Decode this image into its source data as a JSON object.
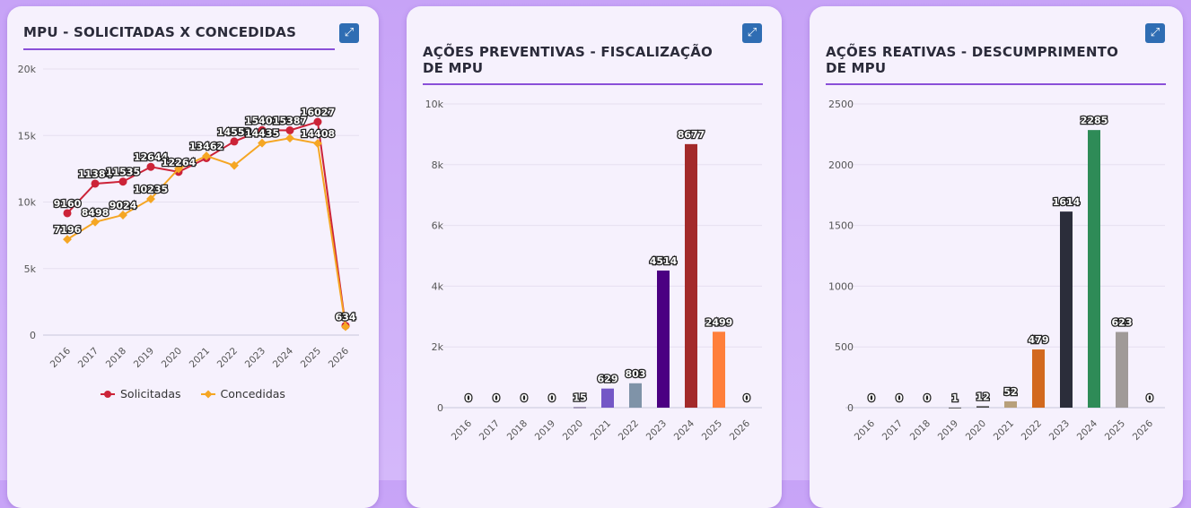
{
  "chart_data": [
    {
      "id": "c1",
      "type": "line",
      "title": "MPU - SOLICITADAS X CONCEDIDAS",
      "categories": [
        "2016",
        "2017",
        "2018",
        "2019",
        "2020",
        "2021",
        "2022",
        "2023",
        "2024",
        "2025",
        "2026"
      ],
      "ylim": [
        0,
        20000
      ],
      "yticks": [
        0,
        5000,
        10000,
        15000,
        20000
      ],
      "ytick_labels": [
        "0",
        "5k",
        "10k",
        "15k",
        "20k"
      ],
      "grid": true,
      "legend": "bottom",
      "series": [
        {
          "name": "Solicitadas",
          "color": "#cc2338",
          "marker": "circle",
          "values": [
            9160,
            11384,
            11535,
            12644,
            12264,
            13300,
            14552,
            15401,
            15387,
            16027,
            700
          ],
          "labels": [
            "9160",
            "11384",
            "11535",
            "12644",
            "12264",
            "",
            "14552",
            "15401",
            "15387",
            "16027",
            ""
          ]
        },
        {
          "name": "Concedidas",
          "color": "#f5a623",
          "marker": "diamond",
          "values": [
            7196,
            8498,
            9024,
            10235,
            12500,
            13462,
            12750,
            14435,
            14800,
            14408,
            634
          ],
          "labels": [
            "7196",
            "8498",
            "9024",
            "10235",
            "",
            "13462",
            "",
            "14435",
            "",
            "14408",
            "634"
          ]
        }
      ]
    },
    {
      "id": "c2",
      "type": "bar",
      "title": "AÇÕES PREVENTIVAS - FISCALIZAÇÃO DE MPU",
      "categories": [
        "2016",
        "2017",
        "2018",
        "2019",
        "2020",
        "2021",
        "2022",
        "2023",
        "2024",
        "2025",
        "2026"
      ],
      "values": [
        0,
        0,
        0,
        0,
        15,
        629,
        803,
        4514,
        8677,
        2499,
        0
      ],
      "colors": [
        "#7b5cc8",
        "#7b5cc8",
        "#7b5cc8",
        "#7b5cc8",
        "#5a4a7a",
        "#7457c6",
        "#7f93a8",
        "#4b0082",
        "#a32a2a",
        "#ff7f3a",
        "#888"
      ],
      "ylim": [
        0,
        10000
      ],
      "yticks": [
        0,
        2000,
        4000,
        6000,
        8000,
        10000
      ],
      "ytick_labels": [
        "0",
        "2k",
        "4k",
        "6k",
        "8k",
        "10k"
      ],
      "grid": true
    },
    {
      "id": "c3",
      "type": "bar",
      "title": "AÇÕES REATIVAS - DESCUMPRIMENTO DE MPU",
      "categories": [
        "2016",
        "2017",
        "2018",
        "2019",
        "2020",
        "2021",
        "2022",
        "2023",
        "2024",
        "2025",
        "2026"
      ],
      "values": [
        0,
        0,
        0,
        1,
        12,
        52,
        479,
        1614,
        2285,
        623,
        0
      ],
      "colors": [
        "#888",
        "#888",
        "#888",
        "#555",
        "#444",
        "#b8a07a",
        "#d2691e",
        "#2b2d3a",
        "#2e8b57",
        "#a09a98",
        "#888"
      ],
      "ylim": [
        0,
        2500
      ],
      "yticks": [
        0,
        500,
        1000,
        1500,
        2000,
        2500
      ],
      "ytick_labels": [
        "0",
        "500",
        "1000",
        "1500",
        "2000",
        "2500"
      ],
      "grid": true
    }
  ],
  "icons": {
    "expand": "expand-arrows-icon"
  }
}
